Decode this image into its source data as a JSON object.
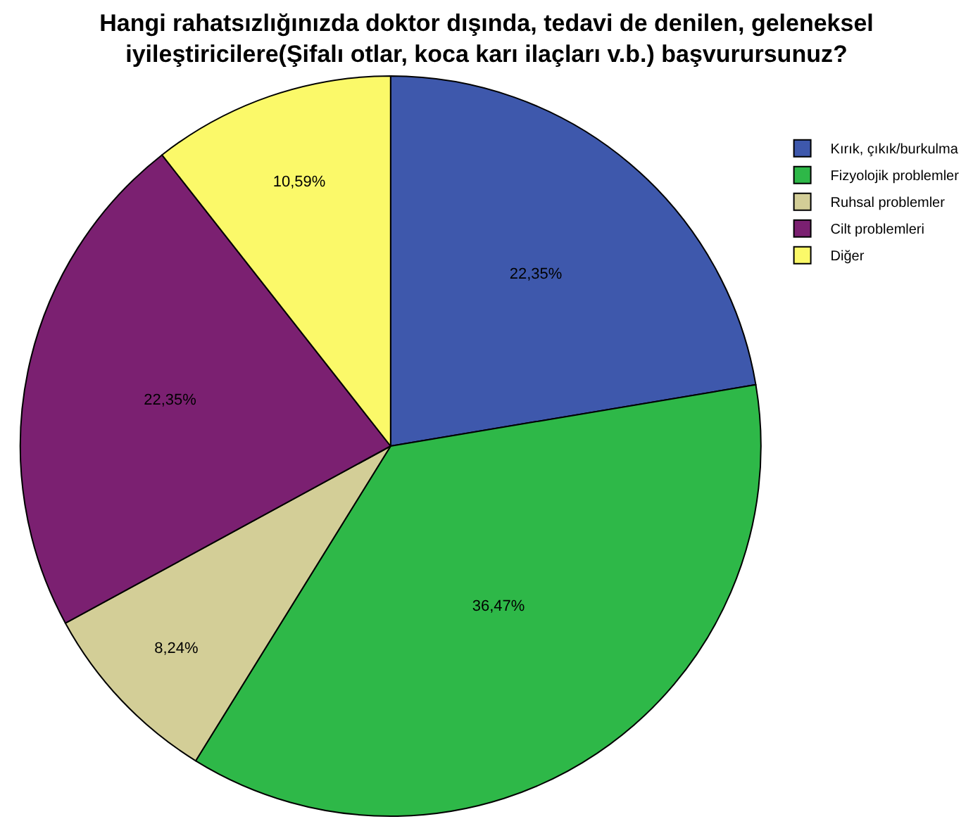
{
  "chart_data": {
    "type": "pie",
    "title": "Hangi rahatsızlığınızda doktor dışında, tedavi de denilen, geleneksel\niyileştiricilere(Şifalı otlar, koca karı ilaçları v.b.) başvurursunuz?",
    "categories": [
      "Kırık, çıkık/burkulma",
      "Fizyolojik problemler",
      "Ruhsal problemler",
      "Cilt problemleri",
      "Diğer"
    ],
    "values": [
      22.35,
      36.47,
      8.24,
      22.35,
      10.59
    ],
    "value_labels": [
      "22,35%",
      "36,47%",
      "8,24%",
      "22,35%",
      "10,59%"
    ],
    "colors": [
      "#3e58ac",
      "#2eb848",
      "#d3ce97",
      "#7b2071",
      "#fbf969"
    ],
    "legend": "top right"
  }
}
